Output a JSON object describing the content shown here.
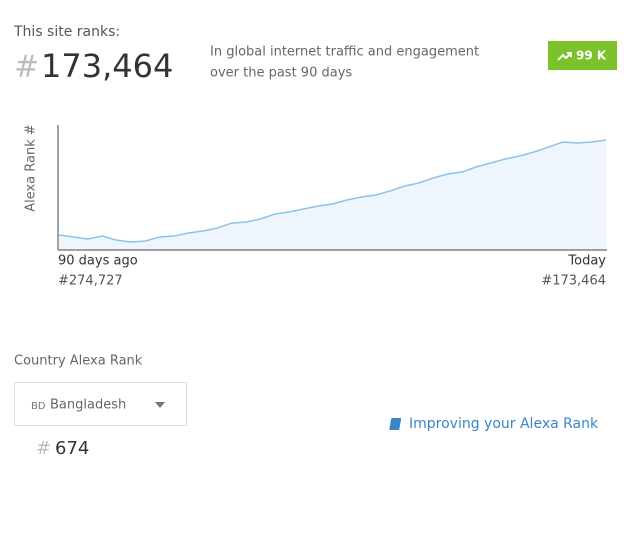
{
  "header": {
    "label": "This site ranks:",
    "rank_prefix": "#",
    "rank": "173,464",
    "description": [
      "In global internet traffic and engagement",
      "over the past 90 days"
    ],
    "badge": "99 K"
  },
  "chart_data": {
    "type": "area",
    "ylabel": "Alexa Rank #",
    "start_label": "90 days ago",
    "start_value": "#274,727",
    "end_label": "Today",
    "end_value": "#173,464",
    "values": [
      274727,
      276900,
      279000,
      275800,
      280100,
      282200,
      281100,
      276900,
      275800,
      272600,
      270500,
      267300,
      262000,
      260900,
      257700,
      252300,
      250200,
      247000,
      243800,
      241700,
      237400,
      234200,
      232100,
      227800,
      222500,
      219300,
      214000,
      209700,
      207600,
      202200,
      198000,
      193700,
      190500,
      186300,
      181000,
      175600,
      176700,
      175600,
      173464
    ],
    "ylim": [
      290700,
      157500
    ],
    "color": "#8cc4ec",
    "fill": "#eef5fc"
  },
  "country": {
    "title": "Country Alexa Rank",
    "code": "BD",
    "name": "Bangladesh",
    "rank_prefix": "#",
    "rank": "674"
  },
  "link": "Improving your Alexa Rank"
}
